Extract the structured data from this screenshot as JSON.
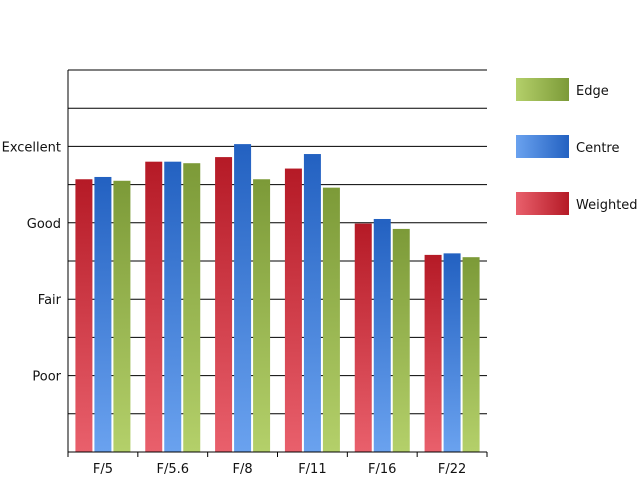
{
  "chart_data": {
    "type": "bar",
    "title": "",
    "xlabel": "",
    "ylabel": "",
    "categories": [
      "F/5",
      "F/5.6",
      "F/8",
      "F/11",
      "F/16",
      "F/22"
    ],
    "y_tick_labels": [
      {
        "value": 1,
        "label": "Poor"
      },
      {
        "value": 2,
        "label": "Fair"
      },
      {
        "value": 3,
        "label": "Good"
      },
      {
        "value": 4,
        "label": "Excellent"
      }
    ],
    "ylim": [
      0,
      5
    ],
    "grid": true,
    "legend_position": "right",
    "series": [
      {
        "name": "Weighted",
        "values": [
          3.57,
          3.8,
          3.86,
          3.71,
          2.99,
          2.58
        ],
        "colors": {
          "dark": "#b51a26",
          "light": "#e9606c"
        }
      },
      {
        "name": "Centre",
        "values": [
          3.6,
          3.8,
          4.03,
          3.9,
          3.05,
          2.6
        ],
        "colors": {
          "dark": "#2361c1",
          "light": "#6aa2ef"
        }
      },
      {
        "name": "Edge",
        "values": [
          3.55,
          3.78,
          3.57,
          3.46,
          2.92,
          2.55
        ],
        "colors": {
          "dark": "#7c9a38",
          "light": "#b4d06a"
        }
      }
    ],
    "legend_order": [
      "Edge",
      "Centre",
      "Weighted"
    ]
  }
}
